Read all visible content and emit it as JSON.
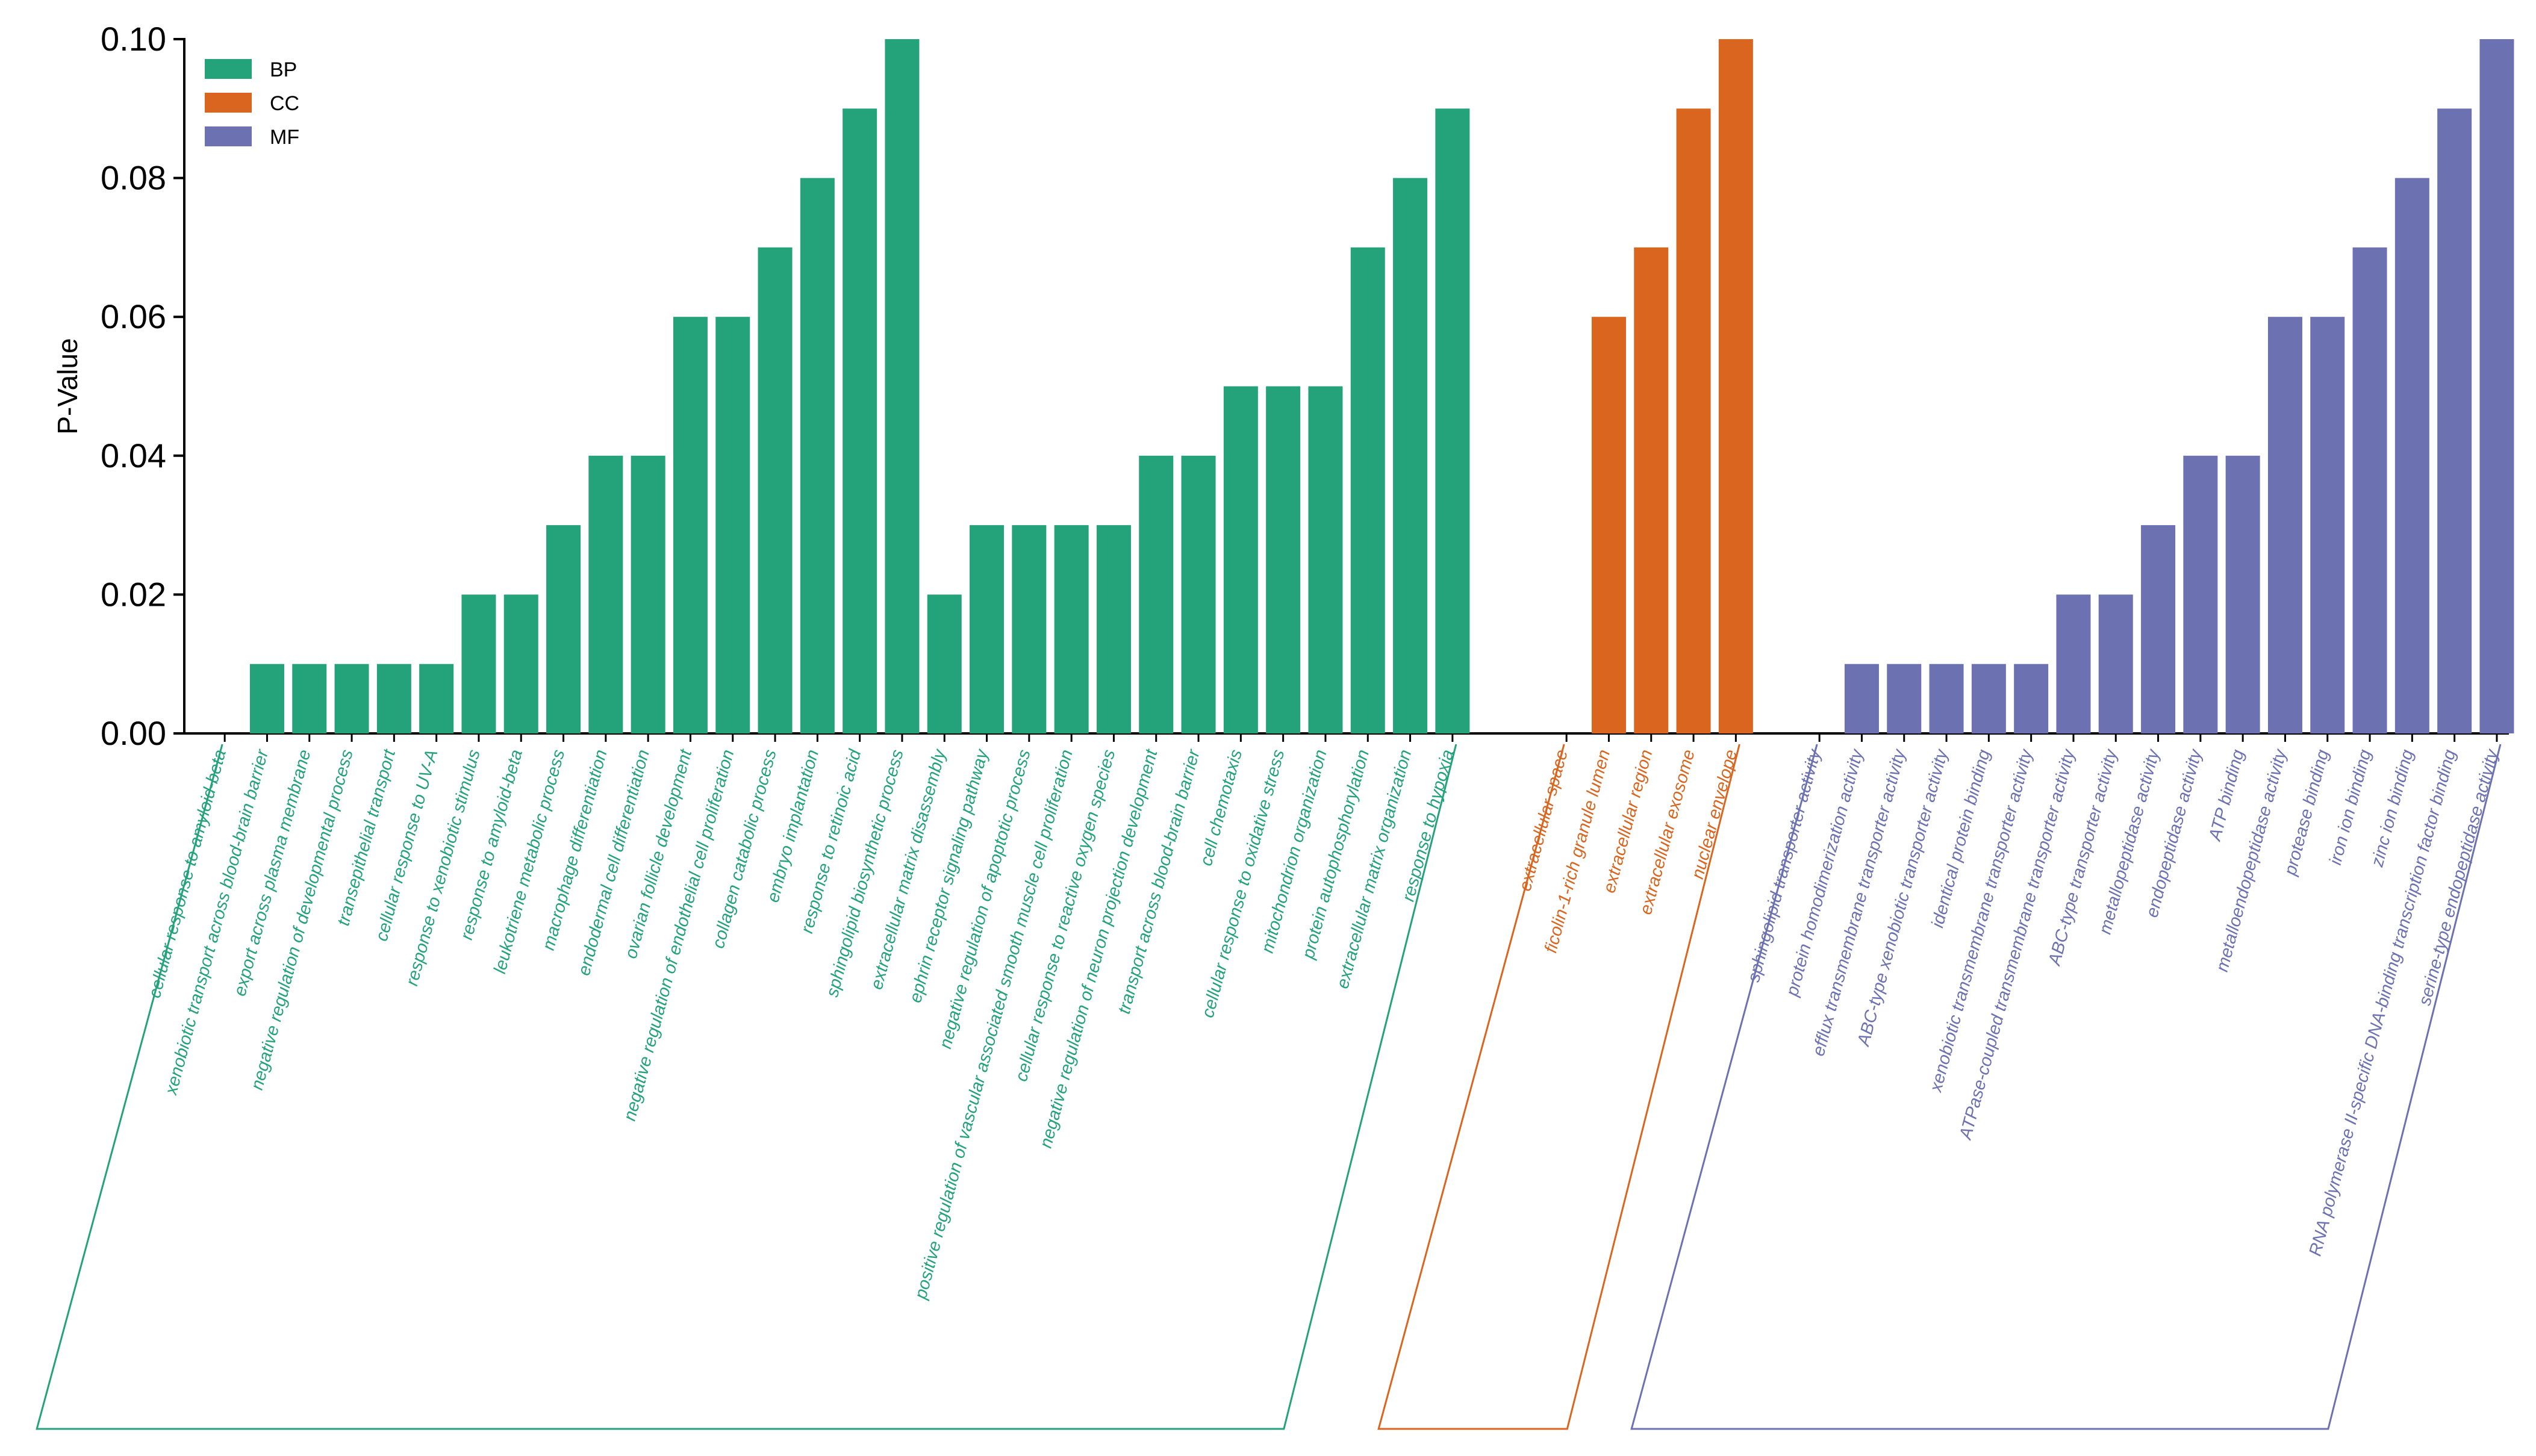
{
  "chart_data": {
    "type": "bar",
    "ylabel": "P-Value",
    "xlabel": "",
    "ylim": [
      0,
      0.1
    ],
    "yticks": [
      "0.00",
      "0.02",
      "0.04",
      "0.06",
      "0.08",
      "0.10"
    ],
    "legend_position": "top-left",
    "colors": {
      "BP": "#24a37a",
      "CC": "#d9651f",
      "MF": "#6c71b2"
    },
    "legend": [
      {
        "name": "BP",
        "color": "#24a37a"
      },
      {
        "name": "CC",
        "color": "#d9651f"
      },
      {
        "name": "MF",
        "color": "#6c71b2"
      }
    ],
    "groups": [
      {
        "name": "BP",
        "categories": [
          "cellular response to amyloid-beta",
          "xenobiotic transport across blood-brain barrier",
          "export across plasma membrane",
          "negative regulation of developmental process",
          "transepithelial transport",
          "cellular response to UV-A",
          "response to xenobiotic stimulus",
          "response to amyloid-beta",
          "leukotriene metabolic process",
          "macrophage differentiation",
          "endodermal cell differentiation",
          "ovarian follicle development",
          "negative regulation of endothelial cell proliferation",
          "collagen catabolic process",
          "embryo implantation",
          "response to retinoic acid",
          "sphingolipid biosynthetic process",
          "extracellular matrix disassembly",
          "ephrin receptor signaling pathway",
          "negative regulation of apoptotic process",
          "positive regulation of vascular associated smooth muscle cell proliferation",
          "cellular response to reactive oxygen species",
          "negative regulation of neuron projection development",
          "transport across blood-brain barrier",
          "cell chemotaxis",
          "cellular response to oxidative stress",
          "mitochondrion organization",
          "protein autophosphorylation",
          "extracellular matrix organization",
          "response to hypoxia"
        ],
        "values": [
          0,
          0.01,
          0.01,
          0.01,
          0.01,
          0.01,
          0.02,
          0.02,
          0.03,
          0.04,
          0.04,
          0.06,
          0.06,
          0.07,
          0.08,
          0.09,
          0.1,
          0.02,
          0.03,
          0.03,
          0.03,
          0.03,
          0.04,
          0.04,
          0.05,
          0.05,
          0.05,
          0.07,
          0.08,
          0.09
        ]
      },
      {
        "name": "CC",
        "categories": [
          "extracellular space",
          "ficolin-1-rich granule lumen",
          "extracellular region",
          "extracellular exosome",
          "nuclear envelope"
        ],
        "values": [
          0,
          0.06,
          0.07,
          0.09,
          0.1
        ]
      },
      {
        "name": "MF",
        "categories": [
          "sphingolipid transporter activity",
          "protein homodimerization activity",
          "efflux transmembrane transporter activity",
          "ABC-type xenobiotic transporter activity",
          "identical protein binding",
          "xenobiotic transmembrane transporter activity",
          "ATPase-coupled transmembrane transporter activity",
          "ABC-type transporter activity",
          "metallopeptidase activity",
          "endopeptidase activity",
          "ATP binding",
          "metalloendopeptidase activity",
          "protease binding",
          "iron ion binding",
          "zinc ion binding",
          "RNA polymerase II-specific DNA-binding transcription factor binding",
          "serine-type endopeptidase activity"
        ],
        "values": [
          0,
          0.01,
          0.01,
          0.01,
          0.01,
          0.01,
          0.02,
          0.02,
          0.03,
          0.04,
          0.04,
          0.06,
          0.06,
          0.07,
          0.08,
          0.09,
          0.1
        ]
      }
    ]
  }
}
